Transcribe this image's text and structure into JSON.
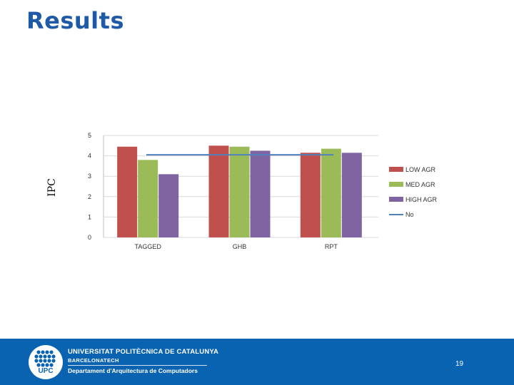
{
  "slide": {
    "title": "Results",
    "title_color": "#1f5aa6"
  },
  "chart_data": {
    "type": "bar",
    "title": "",
    "xlabel": "",
    "ylabel": "IPC",
    "ylim": [
      0,
      5
    ],
    "yticks": [
      0,
      1,
      2,
      3,
      4,
      5
    ],
    "categories": [
      "TAGGED",
      "GHB",
      "RPT"
    ],
    "series": [
      {
        "name": "LOW AGR",
        "values": [
          4.45,
          4.5,
          4.15
        ],
        "color": "#c0504d"
      },
      {
        "name": "MED AGR",
        "values": [
          3.8,
          4.45,
          4.35
        ],
        "color": "#9bbb59"
      },
      {
        "name": "HIGH AGR",
        "values": [
          3.1,
          4.25,
          4.15
        ],
        "color": "#8064a2"
      }
    ],
    "baseline": {
      "name": "No",
      "value": 4.05,
      "color": "#4f81bd"
    },
    "legend_position": "right"
  },
  "footer": {
    "university_name": "UNIVERSITAT POLITÈCNICA DE CATALUNYA",
    "university_sub": "BARCELONATECH",
    "department": "Departament d'Arquitectura de Computadors",
    "logo_text": "UPC",
    "page_number": "19",
    "background_color": "#0a63b0"
  }
}
